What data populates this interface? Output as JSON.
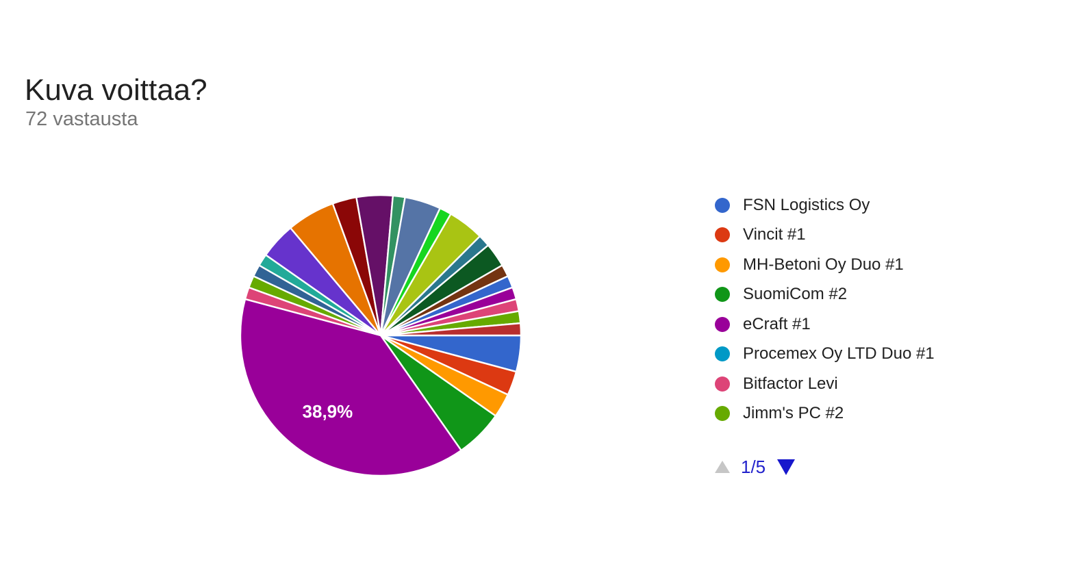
{
  "header": {
    "title": "Kuva voittaa?",
    "subtitle": "72 vastausta"
  },
  "chart_data": {
    "type": "pie",
    "title": "Kuva voittaa?",
    "total_responses": 72,
    "start_angle_deg": 90,
    "direction": "clockwise",
    "legend_position": "right",
    "shown_percent_label": "38,9%",
    "slices": [
      {
        "label": "FSN Logistics Oy",
        "votes": 3,
        "color": "#3366CC"
      },
      {
        "label": "Vincit #1",
        "votes": 2,
        "color": "#DC3912"
      },
      {
        "label": "MH-Betoni Oy Duo #1",
        "votes": 2,
        "color": "#FF9900"
      },
      {
        "label": "SuomiCom #2",
        "votes": 4,
        "color": "#109618"
      },
      {
        "label": "eCraft #1",
        "votes": 28,
        "color": "#990099",
        "percent_label": "38,9%"
      },
      {
        "label": "Bitfactor Levi",
        "votes": 1,
        "color": "#DD4477"
      },
      {
        "label": "Jimm's PC #2",
        "votes": 1,
        "color": "#66AA00"
      },
      {
        "label": "",
        "votes": 1,
        "color": "#316395"
      },
      {
        "label": "",
        "votes": 1,
        "color": "#22AA99"
      },
      {
        "label": "",
        "votes": 3,
        "color": "#6633CC"
      },
      {
        "label": "",
        "votes": 4,
        "color": "#E67300"
      },
      {
        "label": "",
        "votes": 2,
        "color": "#8B0707"
      },
      {
        "label": "",
        "votes": 3,
        "color": "#651067"
      },
      {
        "label": "",
        "votes": 1,
        "color": "#329262"
      },
      {
        "label": "",
        "votes": 3,
        "color": "#5574A6"
      },
      {
        "label": "",
        "votes": 1,
        "color": "#16D620"
      },
      {
        "label": "",
        "votes": 3,
        "color": "#A9C413"
      },
      {
        "label": "",
        "votes": 1,
        "color": "#2A778D"
      },
      {
        "label": "",
        "votes": 2,
        "color": "#0C5922"
      },
      {
        "label": "",
        "votes": 1,
        "color": "#743411"
      },
      {
        "label": "",
        "votes": 1,
        "color": "#3366CC"
      },
      {
        "label": "",
        "votes": 1,
        "color": "#990099"
      },
      {
        "label": "",
        "votes": 1,
        "color": "#DD4477"
      },
      {
        "label": "",
        "votes": 1,
        "color": "#66AA00"
      },
      {
        "label": "",
        "votes": 1,
        "color": "#B82E2E"
      }
    ]
  },
  "legend": {
    "items": [
      {
        "label": "FSN Logistics Oy",
        "color": "#3366CC"
      },
      {
        "label": "Vincit #1",
        "color": "#DC3912"
      },
      {
        "label": "MH-Betoni Oy Duo #1",
        "color": "#FF9900"
      },
      {
        "label": "SuomiCom #2",
        "color": "#109618"
      },
      {
        "label": "eCraft #1",
        "color": "#990099"
      },
      {
        "label": "Procemex Oy LTD Duo #1",
        "color": "#0099C6"
      },
      {
        "label": "Bitfactor Levi",
        "color": "#DD4477"
      },
      {
        "label": "Jimm's PC #2",
        "color": "#66AA00"
      }
    ],
    "pagination": {
      "label": "1/5"
    }
  },
  "style": {
    "title_color": "#212121",
    "subtitle_color": "#757575",
    "legend_text_color": "#212121",
    "pie_label_color": "#FFFFFF",
    "arrow_gray": "#C6C6C6",
    "arrow_blue": "#1717CC",
    "page_text_blue": "#2222CC"
  }
}
